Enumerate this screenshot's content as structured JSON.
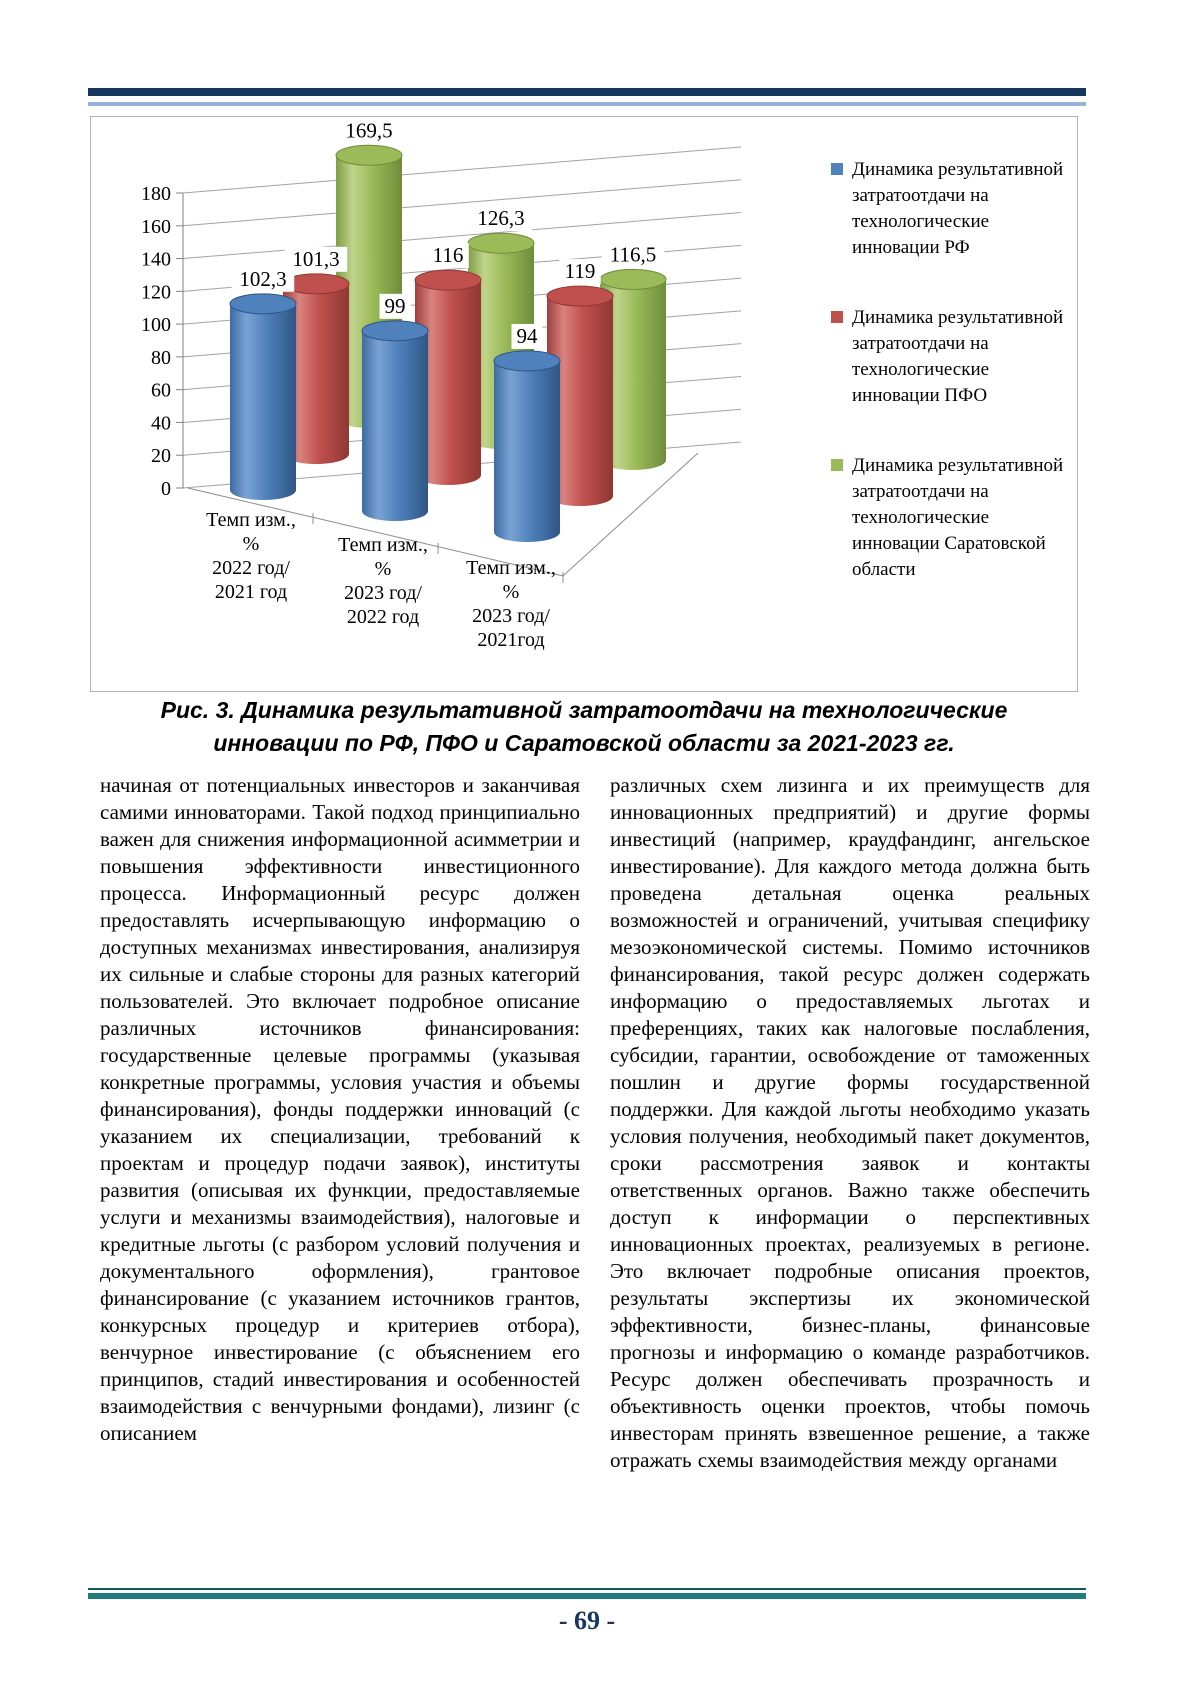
{
  "page": {
    "number_label": "- 69 -"
  },
  "figure": {
    "caption_line1": "Рис. 3. Динамика результативной затратоотдачи на технологические",
    "caption_line2": "инновации по РФ, ПФО и Саратовской области за 2021-2023 гг."
  },
  "chart_data": {
    "type": "bar",
    "subtype": "3d-cylinder",
    "title": "",
    "xlabel": "",
    "ylabel": "",
    "ylim": [
      0,
      180
    ],
    "ytick_step": 20,
    "ytick_labels": [
      "0",
      "20",
      "40",
      "60",
      "80",
      "100",
      "120",
      "140",
      "160",
      "180"
    ],
    "grid": true,
    "legend_position": "right",
    "categories": [
      "Темп изм., % 2022 год/ 2021 год",
      "Темп изм., % 2023 год/ 2022 год",
      "Темп изм., % 2023 год/ 2021год"
    ],
    "category_lines": [
      [
        "Темп изм.,",
        "%",
        "2022 год/",
        "2021 год"
      ],
      [
        "Темп изм.,",
        "%",
        "2023 год/",
        "2022 год"
      ],
      [
        "Темп изм.,",
        "%",
        "2023 год/",
        "2021год"
      ]
    ],
    "series": [
      {
        "name": "Динамика результативной затратоотдачи на технологические инновации РФ",
        "color": "#4f81bd",
        "values": [
          102.3,
          99,
          94
        ],
        "labels": [
          "102,3",
          "99",
          "94"
        ]
      },
      {
        "name": "Динамика результативной затратоотдачи на технологические инновации ПФО",
        "color": "#c0504d",
        "values": [
          101.3,
          116,
          119
        ],
        "labels": [
          "101,3",
          "116",
          "119"
        ]
      },
      {
        "name": "Динамика результативной затратоотдачи на технологические инновации Саратовской области",
        "color": "#9bbb59",
        "values": [
          169.5,
          126.3,
          116.5
        ],
        "labels": [
          "169,5",
          "126,3",
          "116,5"
        ]
      }
    ]
  },
  "body": {
    "left_column": "начиная от потенциальных инвесторов и заканчивая самими инноваторами. Такой подход принципиально важен для снижения информационной асимметрии и повышения эффективности инвестиционного процесса. Информационный ресурс должен предоставлять исчерпывающую информацию о доступных механизмах инвестирования, анализируя их сильные и слабые стороны для разных категорий пользователей. Это включает подробное описание различных источников финансирования: государственные целевые программы (указывая конкретные программы, условия участия и объемы финансирования), фонды поддержки инноваций (с указанием их специализации, требований к проектам и процедур подачи заявок), институты развития (описывая их функции, предоставляемые услуги и механизмы взаимодействия), налоговые и кредитные льготы (с разбором условий получения и документального оформления), грантовое финансирование (с указанием источников грантов, конкурсных процедур и критериев отбора), венчурное инвестирование (с объяснением его принципов, стадий инвестирования и особенностей взаимодействия с венчурными фондами), лизинг (с описанием",
    "right_column": "различных схем лизинга и их преимуществ для инновационных предприятий) и другие формы инвестиций (например, краудфандинг, ангельское инвестирование). Для каждого метода должна быть проведена детальная оценка реальных возможностей и ограничений, учитывая специфику мезоэкономической системы. Помимо источников финансирования, такой ресурс должен содержать информацию о предоставляемых льготах и преференциях, таких как налоговые послабления, субсидии, гарантии, освобождение от таможенных пошлин и другие формы государственной поддержки. Для каждой льготы необходимо указать условия получения, необходимый пакет документов, сроки рассмотрения заявок и контакты ответственных органов. Важно также обеспечить доступ к информации о перспективных инновационных проектах, реализуемых в регионе. Это включает подробные описания проектов, результаты экспертизы их экономической эффективности, бизнес-планы, финансовые прогнозы и информацию о команде разработчиков. Ресурс должен обеспечивать прозрачность и объективность оценки проектов, чтобы помочь инвесторам принять взвешенное решение, а также отражать схемы взаимодействия между органами"
  }
}
